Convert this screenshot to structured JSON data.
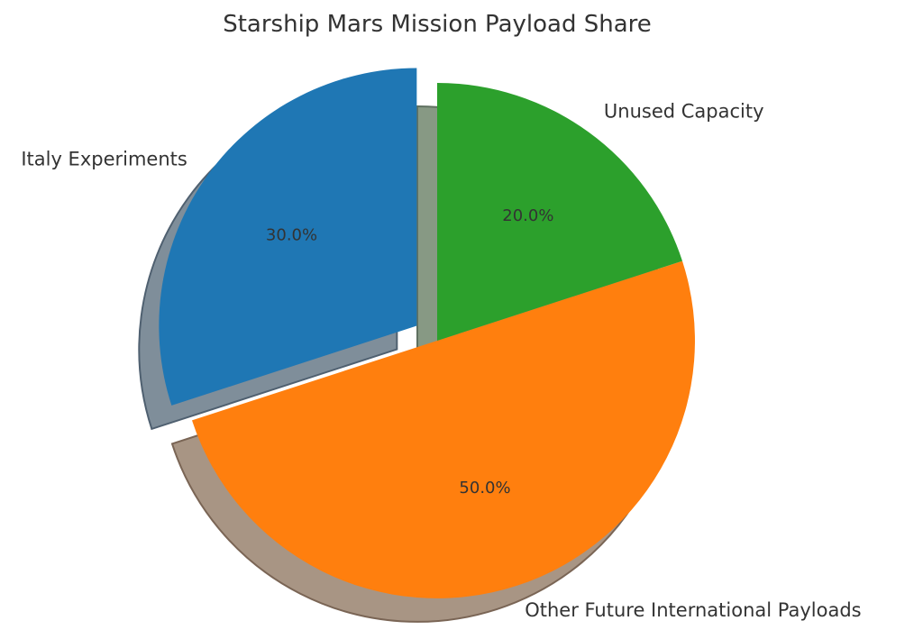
{
  "chart_data": {
    "type": "pie",
    "title": "Starship Mars Mission Payload Share",
    "categories": [
      "Italy Experiments",
      "Other Future International Payloads",
      "Unused Capacity"
    ],
    "values": [
      30.0,
      50.0,
      20.0
    ],
    "value_labels": [
      "30.0%",
      "50.0%",
      "20.0%"
    ],
    "colors": [
      "#1f77b4",
      "#ff7f0e",
      "#2ca02c"
    ],
    "exploded": [
      true,
      false,
      false
    ],
    "shadow": true,
    "start_angle_deg": 90,
    "direction": "counterclockwise",
    "legend": "none"
  }
}
